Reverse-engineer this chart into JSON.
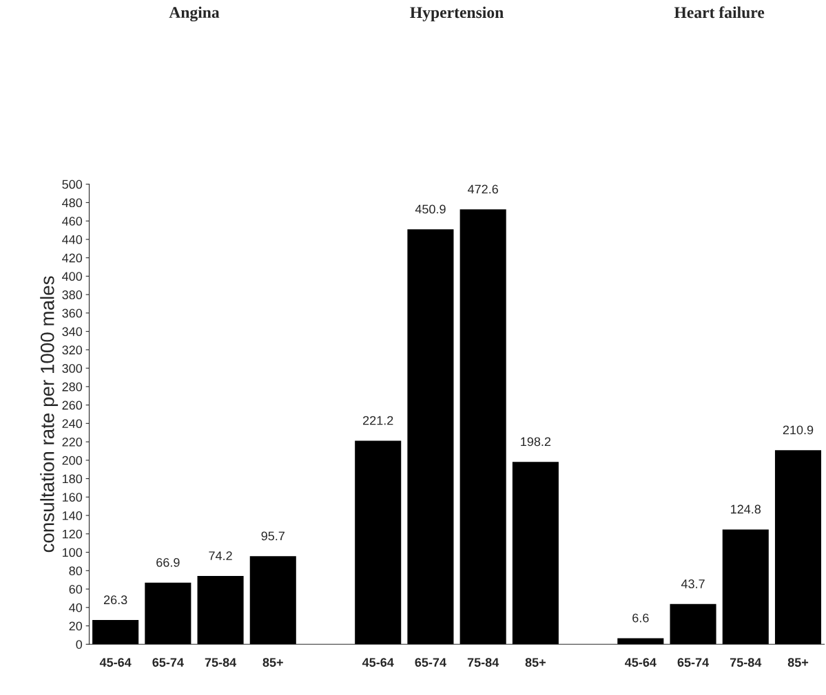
{
  "chart_data": {
    "type": "bar",
    "categories": [
      "45-64",
      "65-74",
      "75-84",
      "85+",
      null,
      "45-64",
      "65-74",
      "75-84",
      "85+",
      null,
      "45-64",
      "65-74",
      "75-84",
      "85+"
    ],
    "values": [
      26.3,
      66.9,
      74.2,
      95.7,
      null,
      221.2,
      450.9,
      472.6,
      198.2,
      null,
      6.6,
      43.7,
      124.8,
      210.9
    ],
    "color": "#000000",
    "ylabel": "consultation rate per 1000 males",
    "ylim": [
      0,
      500
    ],
    "yticks": [
      0,
      20,
      40,
      60,
      80,
      100,
      120,
      140,
      160,
      180,
      200,
      220,
      240,
      260,
      280,
      300,
      320,
      340,
      360,
      380,
      400,
      420,
      440,
      460,
      480,
      500
    ],
    "data_labels": true,
    "grid": false,
    "annotations": [
      "Angina",
      "Hypertension",
      "Heart failure"
    ]
  }
}
